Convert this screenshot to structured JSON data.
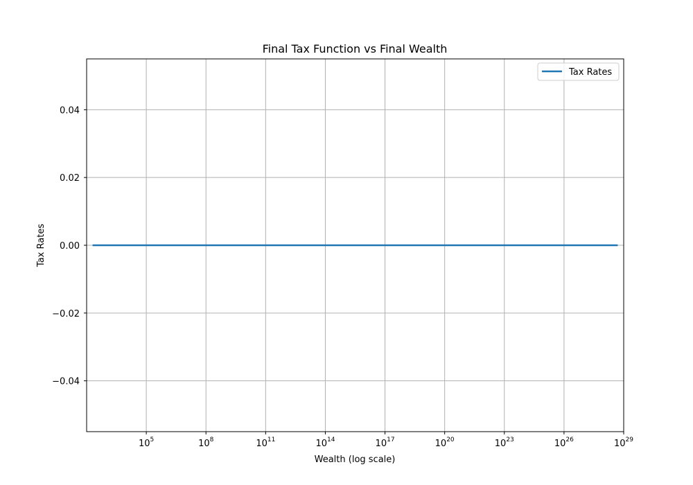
{
  "chart_data": {
    "type": "line",
    "title": "Final Tax Function vs Final Wealth",
    "xlabel": "Wealth (log scale)",
    "ylabel": "Tax Rates",
    "xscale": "log",
    "xlim": [
      100,
      1e+29
    ],
    "ylim": [
      -0.055,
      0.055
    ],
    "x_ticks": [
      {
        "base": "10",
        "exp": "5",
        "value": 100000.0
      },
      {
        "base": "10",
        "exp": "8",
        "value": 100000000.0
      },
      {
        "base": "10",
        "exp": "11",
        "value": 100000000000.0
      },
      {
        "base": "10",
        "exp": "14",
        "value": 100000000000000.0
      },
      {
        "base": "10",
        "exp": "17",
        "value": 1e+17
      },
      {
        "base": "10",
        "exp": "20",
        "value": 1e+20
      },
      {
        "base": "10",
        "exp": "23",
        "value": 1e+23
      },
      {
        "base": "10",
        "exp": "26",
        "value": 1e+26
      },
      {
        "base": "10",
        "exp": "29",
        "value": 1e+29
      }
    ],
    "y_ticks": [
      {
        "label": "0.04",
        "value": 0.04
      },
      {
        "label": "0.02",
        "value": 0.02
      },
      {
        "label": "0.00",
        "value": 0.0
      },
      {
        "label": "−0.02",
        "value": -0.02
      },
      {
        "label": "−0.04",
        "value": -0.04
      }
    ],
    "grid": true,
    "legend_position": "top-right",
    "series": [
      {
        "name": "Tax Rates",
        "color": "#1f77b4",
        "x": [
          200,
          100000.0,
          100000000.0,
          100000000000.0,
          100000000000000.0,
          1e+17,
          1e+20,
          1e+23,
          1e+26,
          5e+28
        ],
        "y": [
          0,
          0,
          0,
          0,
          0,
          0,
          0,
          0,
          0,
          0
        ]
      }
    ]
  }
}
